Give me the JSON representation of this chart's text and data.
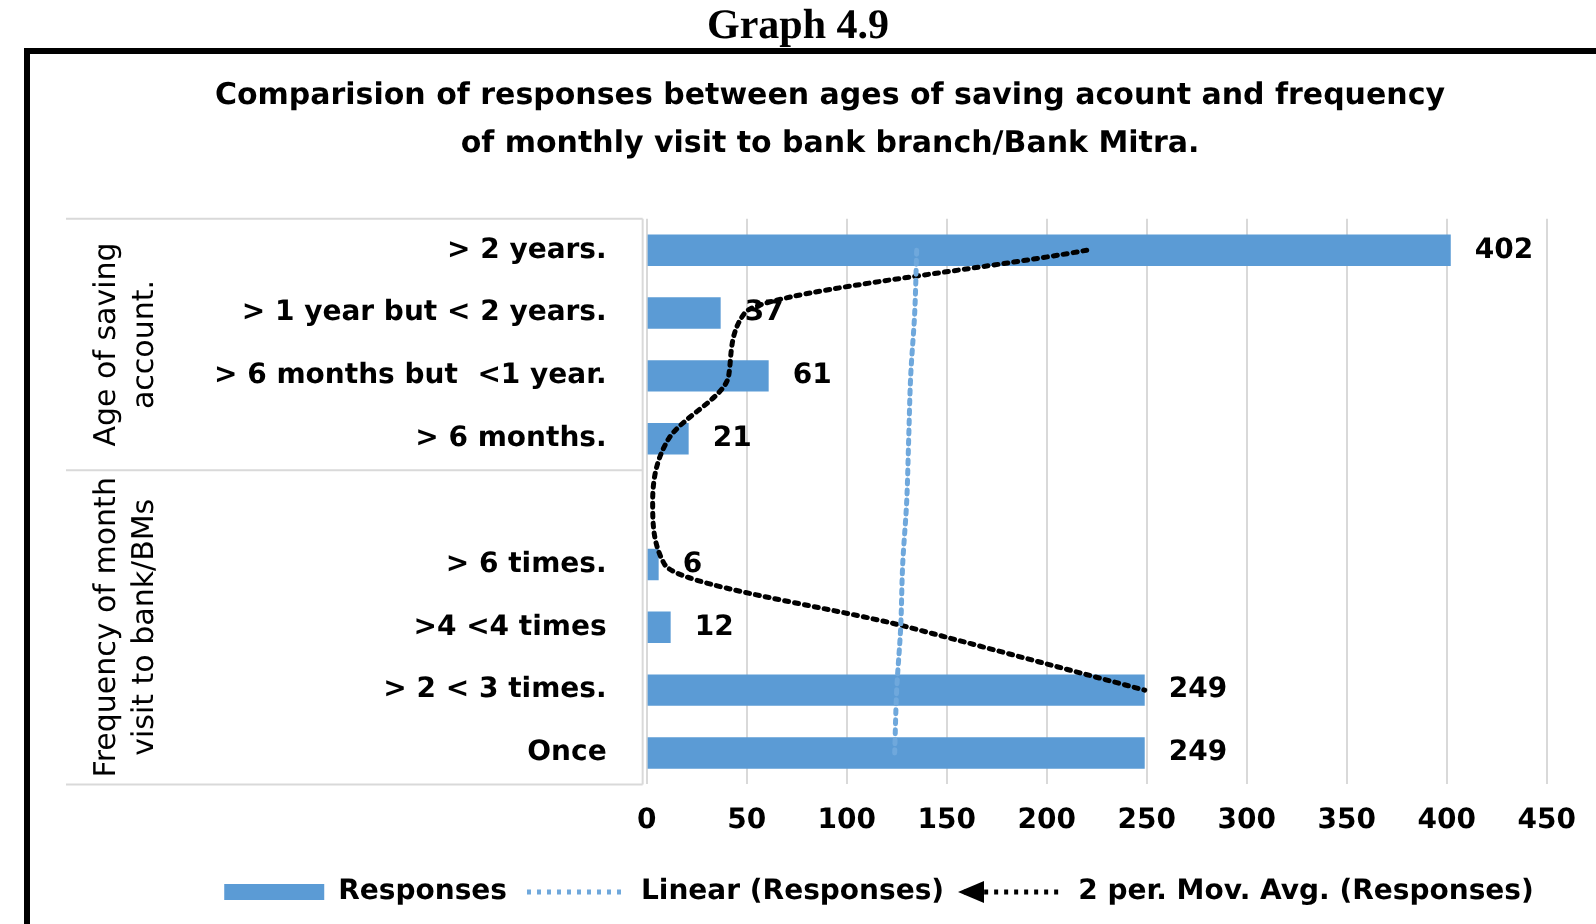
{
  "chart_data": {
    "type": "bar",
    "orientation": "horizontal",
    "title": "Comparision of responses between ages of saving acount and frequency of monthly visit to bank branch/Bank Mitra.",
    "categories": [
      "> 2 years.",
      "> 1 year but < 2 years.",
      "> 6 months but  <1 year.",
      "> 6 months.",
      null,
      "> 6 times.",
      ">4 <4 times",
      "> 2 < 3 times.",
      "Once"
    ],
    "series": [
      {
        "name": "Responses",
        "color": "#5b9bd5",
        "values": [
          402,
          37,
          61,
          21,
          null,
          6,
          12,
          249,
          249
        ],
        "value_labels": [
          "402",
          "37",
          "61",
          "21",
          null,
          "6",
          "12",
          "249",
          "249"
        ]
      },
      {
        "name": "Linear (Responses)",
        "type": "line",
        "color": "#6fa8dc",
        "line_style": "dotted",
        "values": [
          135,
          134,
          132,
          131,
          130,
          128,
          127,
          125,
          124
        ]
      },
      {
        "name": "2 per. Mov. Avg. (Responses)",
        "type": "line",
        "color": "#000000",
        "line_style": "dotted",
        "values": [
          220,
          49,
          41,
          11,
          3,
          9,
          131,
          249,
          null
        ]
      }
    ],
    "xlim": [
      0,
      450
    ],
    "xticks": [
      0,
      50,
      100,
      150,
      200,
      250,
      300,
      350,
      400,
      450
    ],
    "grid": "x",
    "legend": "bottom",
    "annotations": [
      "Graph 4.9",
      "Age of saving account.",
      "Frequency of month visit to bank/BMs"
    ]
  }
}
